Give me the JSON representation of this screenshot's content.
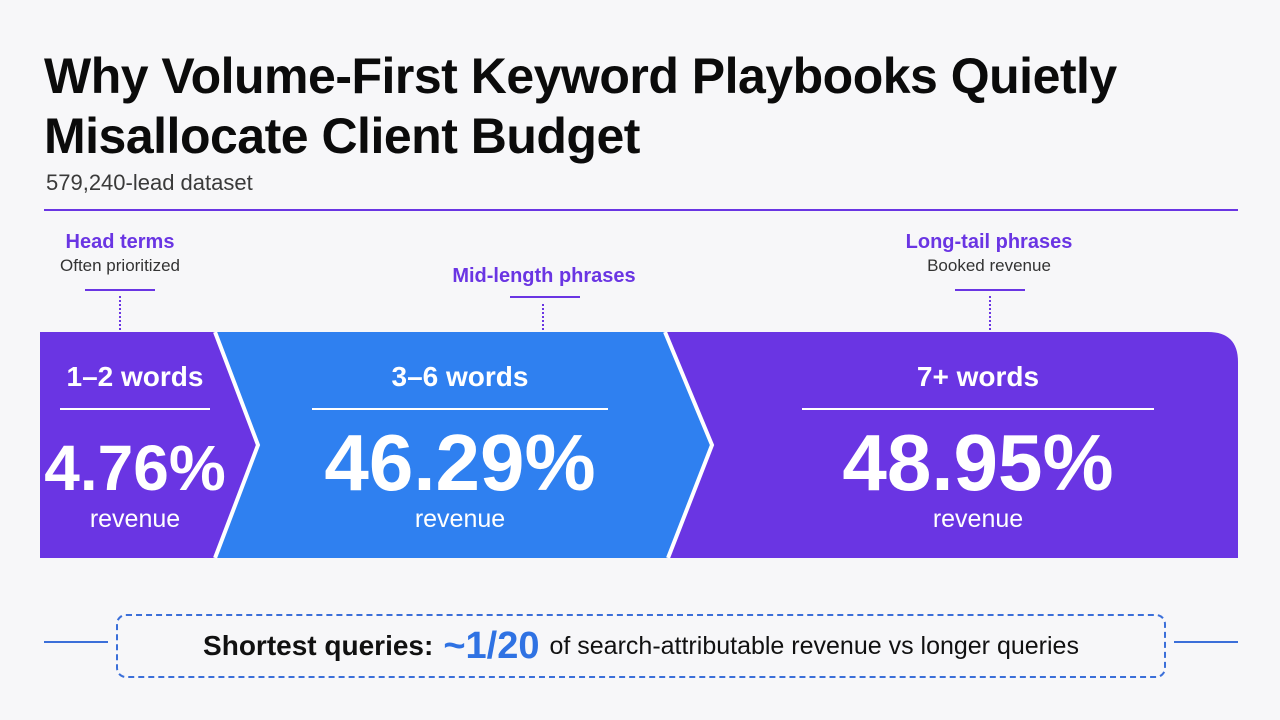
{
  "colors": {
    "purple": "#6a35e3",
    "blue": "#2f80f0",
    "accent_text": "#6a35e3",
    "callout_value": "#2f72e3",
    "rule": "#6a35e3",
    "callout_line": "#3b6fd9"
  },
  "header": {
    "title": "Why Volume-First Keyword Playbooks Quietly Misallocate Client Budget",
    "subtitle": "579,240-lead dataset"
  },
  "segment_labels": [
    {
      "name": "Head terms",
      "note": "Often prioritized"
    },
    {
      "name": "Mid-length phrases",
      "note": ""
    },
    {
      "name": "Long-tail phrases",
      "note": "Booked revenue"
    }
  ],
  "chart_data": {
    "type": "bar",
    "categories": [
      "1–2 words",
      "3–6 words",
      "7+ words"
    ],
    "values": [
      4.76,
      46.29,
      48.95
    ],
    "value_labels": [
      "4.76%",
      "46.29%",
      "48.95%"
    ],
    "unit_label": "revenue",
    "title": "",
    "xlabel": "",
    "ylabel": ""
  },
  "callout": {
    "lead": "Shortest queries:",
    "value": "~1/20",
    "rest": "of search-attributable revenue vs longer queries"
  }
}
